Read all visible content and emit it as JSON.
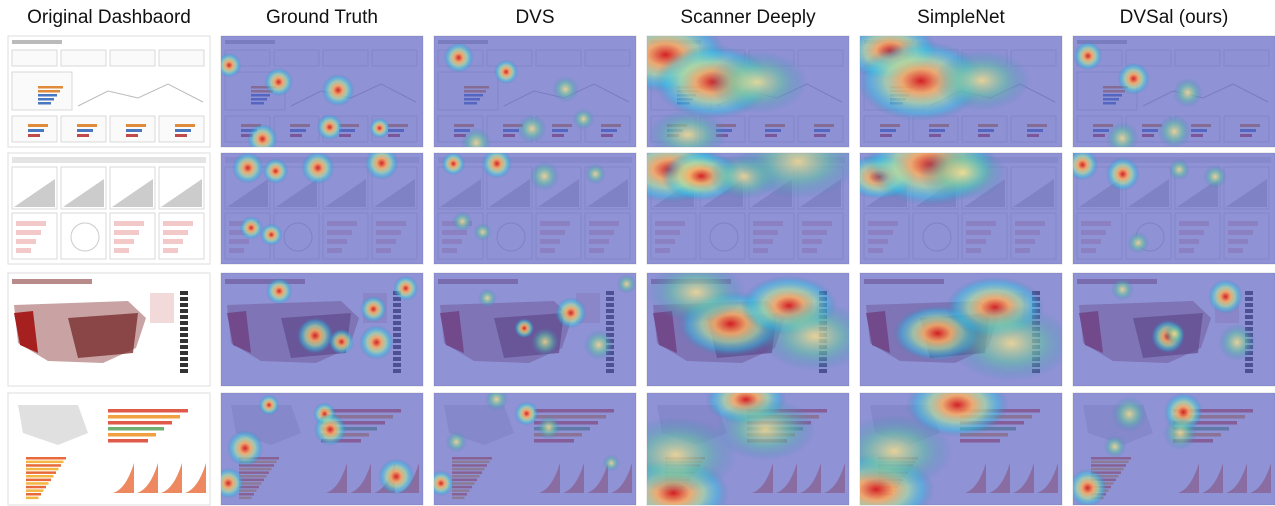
{
  "columns": [
    "Original Dashbaord",
    "Ground Truth",
    "DVS",
    "Scanner Deeply",
    "SimpleNet",
    "DVSal (ours)"
  ]
}
